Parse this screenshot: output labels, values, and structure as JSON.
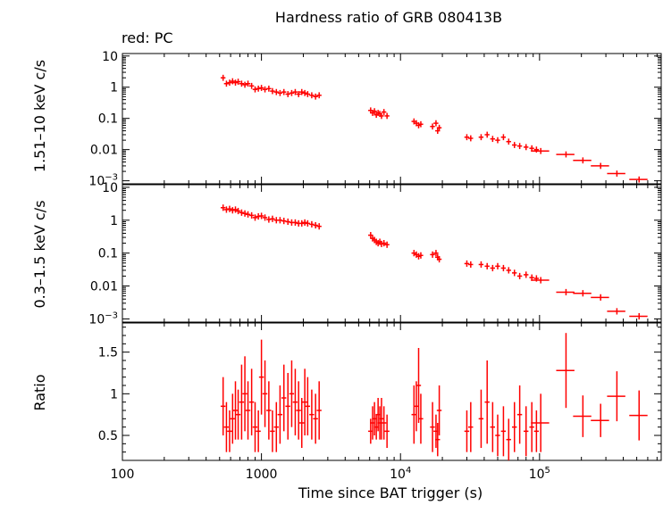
{
  "chart_data": {
    "type": "scatter",
    "title": "Hardness ratio of GRB 080413B",
    "legend_text": "red: PC",
    "xlabel": "Time since BAT trigger (s)",
    "xscale": "log",
    "xlim": [
      100,
      750000
    ],
    "x_ticks": [
      {
        "value": 100,
        "label": "100",
        "base": "",
        "exp": ""
      },
      {
        "value": 1000,
        "label": "1000",
        "base": "",
        "exp": ""
      },
      {
        "value": 10000,
        "label": "",
        "base": "10",
        "exp": "4"
      },
      {
        "value": 100000,
        "label": "",
        "base": "10",
        "exp": "5"
      }
    ],
    "series_color": "#ff0000",
    "panels": [
      {
        "id": "hard",
        "ylabel": "1.51–10 keV c/s",
        "yscale": "log",
        "ylim": [
          0.0008,
          12
        ],
        "y_ticks": [
          {
            "value": 10,
            "label": "10",
            "base": "",
            "exp": ""
          },
          {
            "value": 1,
            "label": "1",
            "base": "",
            "exp": ""
          },
          {
            "value": 0.1,
            "label": "0.1",
            "base": "",
            "exp": ""
          },
          {
            "value": 0.01,
            "label": "0.01",
            "base": "",
            "exp": ""
          },
          {
            "value": 0.001,
            "label": "",
            "base": "10",
            "exp": "−3"
          }
        ],
        "points": [
          [
            530,
            2.0
          ],
          [
            560,
            1.3
          ],
          [
            590,
            1.4
          ],
          [
            620,
            1.55
          ],
          [
            650,
            1.4
          ],
          [
            680,
            1.5
          ],
          [
            720,
            1.3
          ],
          [
            760,
            1.2
          ],
          [
            800,
            1.3
          ],
          [
            850,
            1.1
          ],
          [
            900,
            0.85
          ],
          [
            950,
            0.9
          ],
          [
            1000,
            0.95
          ],
          [
            1060,
            0.85
          ],
          [
            1130,
            0.9
          ],
          [
            1200,
            0.75
          ],
          [
            1280,
            0.7
          ],
          [
            1360,
            0.65
          ],
          [
            1450,
            0.7
          ],
          [
            1550,
            0.6
          ],
          [
            1650,
            0.65
          ],
          [
            1750,
            0.7
          ],
          [
            1850,
            0.6
          ],
          [
            1950,
            0.7
          ],
          [
            2050,
            0.65
          ],
          [
            2150,
            0.6
          ],
          [
            2300,
            0.55
          ],
          [
            2450,
            0.5
          ],
          [
            2600,
            0.55
          ],
          [
            6100,
            0.18
          ],
          [
            6300,
            0.15
          ],
          [
            6500,
            0.17
          ],
          [
            6700,
            0.13
          ],
          [
            6900,
            0.15
          ],
          [
            7100,
            0.14
          ],
          [
            7300,
            0.12
          ],
          [
            7600,
            0.16
          ],
          [
            8000,
            0.12
          ],
          [
            12500,
            0.08
          ],
          [
            13000,
            0.07
          ],
          [
            13500,
            0.06
          ],
          [
            14000,
            0.065
          ],
          [
            17000,
            0.055
          ],
          [
            18000,
            0.07
          ],
          [
            18500,
            0.04
          ],
          [
            19000,
            0.05
          ],
          [
            30000,
            0.025
          ],
          [
            32000,
            0.023
          ],
          [
            38000,
            0.025
          ],
          [
            42000,
            0.03
          ],
          [
            46000,
            0.022
          ],
          [
            50000,
            0.02
          ],
          [
            55000,
            0.025
          ],
          [
            60000,
            0.018
          ],
          [
            66000,
            0.014
          ],
          [
            72000,
            0.013
          ],
          [
            80000,
            0.012
          ],
          [
            88000,
            0.011
          ],
          [
            95000,
            0.01
          ],
          [
            102000,
            0.009
          ],
          [
            155000,
            0.007
          ],
          [
            205000,
            0.0045
          ],
          [
            275000,
            0.003
          ],
          [
            360000,
            0.0017
          ],
          [
            520000,
            0.0011
          ]
        ]
      },
      {
        "id": "soft",
        "ylabel": "0.3–1.5 keV c/s",
        "yscale": "log",
        "ylim": [
          0.0008,
          12
        ],
        "y_ticks": [
          {
            "value": 10,
            "label": "10",
            "base": "",
            "exp": ""
          },
          {
            "value": 1,
            "label": "1",
            "base": "",
            "exp": ""
          },
          {
            "value": 0.1,
            "label": "0.1",
            "base": "",
            "exp": ""
          },
          {
            "value": 0.01,
            "label": "0.01",
            "base": "",
            "exp": ""
          },
          {
            "value": 0.001,
            "label": "",
            "base": "10",
            "exp": "−3"
          }
        ],
        "points": [
          [
            530,
            2.4
          ],
          [
            560,
            2.1
          ],
          [
            590,
            2.2
          ],
          [
            620,
            2.0
          ],
          [
            650,
            2.1
          ],
          [
            680,
            1.9
          ],
          [
            720,
            1.7
          ],
          [
            760,
            1.6
          ],
          [
            800,
            1.5
          ],
          [
            850,
            1.4
          ],
          [
            900,
            1.2
          ],
          [
            950,
            1.3
          ],
          [
            1000,
            1.35
          ],
          [
            1060,
            1.2
          ],
          [
            1130,
            1.05
          ],
          [
            1200,
            1.1
          ],
          [
            1280,
            1.0
          ],
          [
            1360,
            1.0
          ],
          [
            1450,
            0.95
          ],
          [
            1550,
            0.9
          ],
          [
            1650,
            0.85
          ],
          [
            1750,
            0.85
          ],
          [
            1850,
            0.8
          ],
          [
            1950,
            0.8
          ],
          [
            2050,
            0.85
          ],
          [
            2150,
            0.8
          ],
          [
            2300,
            0.75
          ],
          [
            2450,
            0.7
          ],
          [
            2600,
            0.65
          ],
          [
            6100,
            0.35
          ],
          [
            6300,
            0.28
          ],
          [
            6500,
            0.25
          ],
          [
            6700,
            0.22
          ],
          [
            6900,
            0.2
          ],
          [
            7100,
            0.22
          ],
          [
            7300,
            0.19
          ],
          [
            7600,
            0.2
          ],
          [
            8000,
            0.18
          ],
          [
            12500,
            0.1
          ],
          [
            13000,
            0.09
          ],
          [
            13500,
            0.08
          ],
          [
            14000,
            0.085
          ],
          [
            17000,
            0.09
          ],
          [
            18000,
            0.1
          ],
          [
            18500,
            0.075
          ],
          [
            19000,
            0.065
          ],
          [
            30000,
            0.048
          ],
          [
            32000,
            0.045
          ],
          [
            38000,
            0.045
          ],
          [
            42000,
            0.04
          ],
          [
            46000,
            0.035
          ],
          [
            50000,
            0.04
          ],
          [
            55000,
            0.035
          ],
          [
            60000,
            0.03
          ],
          [
            66000,
            0.025
          ],
          [
            72000,
            0.02
          ],
          [
            80000,
            0.022
          ],
          [
            88000,
            0.018
          ],
          [
            95000,
            0.017
          ],
          [
            102000,
            0.015
          ],
          [
            155000,
            0.0065
          ],
          [
            205000,
            0.006
          ],
          [
            275000,
            0.0045
          ],
          [
            360000,
            0.0017
          ],
          [
            520000,
            0.0012
          ]
        ]
      },
      {
        "id": "ratio",
        "ylabel": "Ratio",
        "yscale": "linear",
        "ylim": [
          0.2,
          1.85
        ],
        "y_ticks": [
          {
            "value": 0.5,
            "label": "0.5",
            "base": "",
            "exp": ""
          },
          {
            "value": 1,
            "label": "1",
            "base": "",
            "exp": ""
          },
          {
            "value": 1.5,
            "label": "1.5",
            "base": "",
            "exp": ""
          }
        ],
        "points": [
          [
            530,
            0.85,
            0.35
          ],
          [
            560,
            0.6,
            0.3
          ],
          [
            590,
            0.55,
            0.25
          ],
          [
            620,
            0.7,
            0.3
          ],
          [
            650,
            0.8,
            0.35
          ],
          [
            680,
            0.75,
            0.3
          ],
          [
            720,
            0.9,
            0.45
          ],
          [
            760,
            1.0,
            0.45
          ],
          [
            800,
            0.8,
            0.35
          ],
          [
            850,
            0.9,
            0.4
          ],
          [
            900,
            0.6,
            0.3
          ],
          [
            950,
            0.55,
            0.25
          ],
          [
            1000,
            1.2,
            0.45
          ],
          [
            1060,
            1.0,
            0.4
          ],
          [
            1130,
            0.8,
            0.35
          ],
          [
            1200,
            0.55,
            0.25
          ],
          [
            1280,
            0.6,
            0.3
          ],
          [
            1360,
            0.75,
            0.35
          ],
          [
            1450,
            0.95,
            0.4
          ],
          [
            1550,
            0.85,
            0.4
          ],
          [
            1650,
            1.0,
            0.4
          ],
          [
            1750,
            0.9,
            0.4
          ],
          [
            1850,
            0.8,
            0.35
          ],
          [
            1950,
            0.65,
            0.3
          ],
          [
            2050,
            0.9,
            0.4
          ],
          [
            2150,
            0.85,
            0.35
          ],
          [
            2300,
            0.75,
            0.3
          ],
          [
            2450,
            0.7,
            0.3
          ],
          [
            2600,
            0.8,
            0.35
          ],
          [
            6100,
            0.55,
            0.15
          ],
          [
            6300,
            0.65,
            0.2
          ],
          [
            6500,
            0.7,
            0.2
          ],
          [
            6700,
            0.6,
            0.15
          ],
          [
            6900,
            0.75,
            0.2
          ],
          [
            7100,
            0.65,
            0.2
          ],
          [
            7300,
            0.7,
            0.25
          ],
          [
            7600,
            0.65,
            0.2
          ],
          [
            8000,
            0.55,
            0.2
          ],
          [
            12500,
            0.75,
            0.35
          ],
          [
            13000,
            0.85,
            0.3
          ],
          [
            13500,
            1.1,
            0.45
          ],
          [
            14000,
            0.7,
            0.3
          ],
          [
            17000,
            0.6,
            0.3
          ],
          [
            18000,
            0.55,
            0.2
          ],
          [
            18500,
            0.45,
            0.2
          ],
          [
            19000,
            0.8,
            0.3
          ],
          [
            30000,
            0.55,
            0.25
          ],
          [
            32000,
            0.6,
            0.3
          ],
          [
            38000,
            0.7,
            0.35
          ],
          [
            42000,
            0.9,
            0.5
          ],
          [
            46000,
            0.6,
            0.3
          ],
          [
            50000,
            0.5,
            0.25
          ],
          [
            55000,
            0.55,
            0.3
          ],
          [
            60000,
            0.45,
            0.25
          ],
          [
            66000,
            0.6,
            0.3
          ],
          [
            72000,
            0.75,
            0.35
          ],
          [
            80000,
            0.55,
            0.3
          ],
          [
            88000,
            0.6,
            0.3
          ],
          [
            95000,
            0.55,
            0.25
          ],
          [
            102000,
            0.65,
            0.35
          ],
          [
            155000,
            1.28,
            0.45
          ],
          [
            205000,
            0.73,
            0.25
          ],
          [
            275000,
            0.68,
            0.2
          ],
          [
            360000,
            0.97,
            0.3
          ],
          [
            520000,
            0.74,
            0.3
          ]
        ]
      }
    ]
  }
}
